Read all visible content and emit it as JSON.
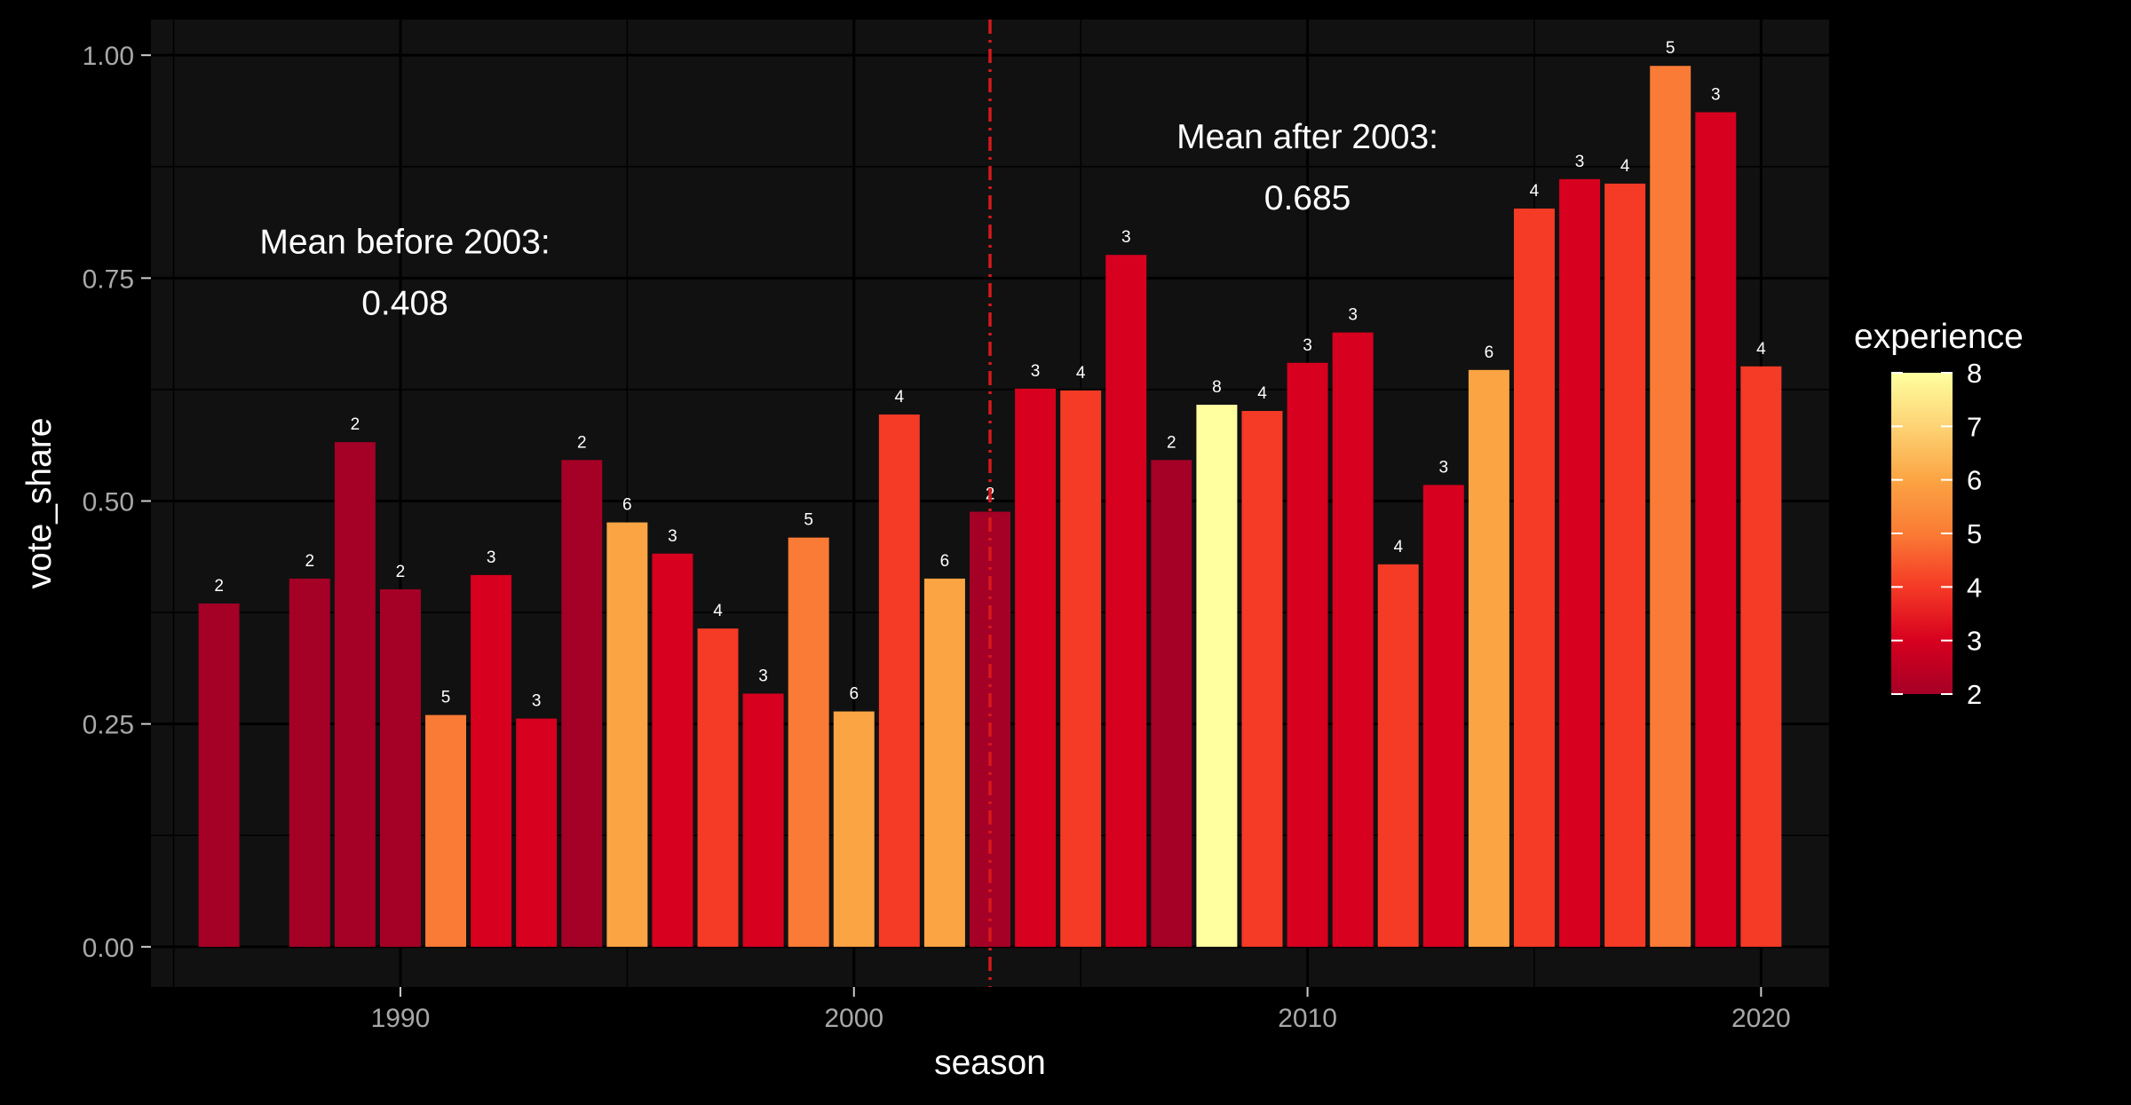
{
  "chart_data": {
    "type": "bar",
    "xlabel": "season",
    "ylabel": "vote_share",
    "xlim": [
      1984.5,
      2021.5
    ],
    "ylim": [
      -0.045,
      1.04
    ],
    "x_ticks": [
      1990,
      2000,
      2010,
      2020
    ],
    "x_tick_labels": [
      "1990",
      "2000",
      "2010",
      "2020"
    ],
    "y_ticks": [
      0,
      0.25,
      0.5,
      0.75,
      1.0
    ],
    "y_tick_labels": [
      "0.00",
      "0.25",
      "0.50",
      "0.75",
      "1.00"
    ],
    "grid": true,
    "bars": [
      {
        "x": 1986,
        "y": 0.385,
        "experience": 2
      },
      {
        "x": 1988,
        "y": 0.413,
        "experience": 2
      },
      {
        "x": 1989,
        "y": 0.566,
        "experience": 2
      },
      {
        "x": 1990,
        "y": 0.401,
        "experience": 2
      },
      {
        "x": 1991,
        "y": 0.26,
        "experience": 5
      },
      {
        "x": 1992,
        "y": 0.417,
        "experience": 3
      },
      {
        "x": 1993,
        "y": 0.256,
        "experience": 3
      },
      {
        "x": 1994,
        "y": 0.546,
        "experience": 2
      },
      {
        "x": 1995,
        "y": 0.476,
        "experience": 6
      },
      {
        "x": 1996,
        "y": 0.441,
        "experience": 3
      },
      {
        "x": 1997,
        "y": 0.357,
        "experience": 4
      },
      {
        "x": 1998,
        "y": 0.284,
        "experience": 3
      },
      {
        "x": 1999,
        "y": 0.459,
        "experience": 5
      },
      {
        "x": 2000,
        "y": 0.264,
        "experience": 6
      },
      {
        "x": 2001,
        "y": 0.597,
        "experience": 4
      },
      {
        "x": 2002,
        "y": 0.413,
        "experience": 6
      },
      {
        "x": 2003,
        "y": 0.488,
        "experience": 2
      },
      {
        "x": 2004,
        "y": 0.626,
        "experience": 3
      },
      {
        "x": 2005,
        "y": 0.624,
        "experience": 4
      },
      {
        "x": 2006,
        "y": 0.776,
        "experience": 3
      },
      {
        "x": 2007,
        "y": 0.546,
        "experience": 2
      },
      {
        "x": 2008,
        "y": 0.608,
        "experience": 8
      },
      {
        "x": 2009,
        "y": 0.601,
        "experience": 4
      },
      {
        "x": 2010,
        "y": 0.655,
        "experience": 3
      },
      {
        "x": 2011,
        "y": 0.689,
        "experience": 3
      },
      {
        "x": 2012,
        "y": 0.429,
        "experience": 4
      },
      {
        "x": 2013,
        "y": 0.518,
        "experience": 3
      },
      {
        "x": 2014,
        "y": 0.647,
        "experience": 6
      },
      {
        "x": 2015,
        "y": 0.828,
        "experience": 4
      },
      {
        "x": 2016,
        "y": 0.861,
        "experience": 3
      },
      {
        "x": 2017,
        "y": 0.856,
        "experience": 4
      },
      {
        "x": 2018,
        "y": 0.988,
        "experience": 5
      },
      {
        "x": 2019,
        "y": 0.936,
        "experience": 3
      },
      {
        "x": 2020,
        "y": 0.651,
        "experience": 4
      }
    ],
    "vline": {
      "x": 2003,
      "color": "#D7191C",
      "style": "dotdash"
    },
    "annotations": [
      {
        "line1": "Mean before 2003:",
        "line2": "0.408",
        "x": 1990.1,
        "y": 0.745
      },
      {
        "line1": "Mean after 2003:",
        "line2": "0.685",
        "x": 2010.0,
        "y": 0.863
      }
    ],
    "legend": {
      "title": "experience",
      "position": "right",
      "min": 2,
      "max": 8,
      "breaks": [
        2,
        3,
        4,
        5,
        6,
        7,
        8
      ],
      "colors": {
        "2": "#A50026",
        "3": "#D7001F",
        "4": "#F53A26",
        "5": "#FA7B35",
        "6": "#FBA443",
        "7": "#FDD374",
        "8": "#FFFFA0"
      }
    }
  }
}
